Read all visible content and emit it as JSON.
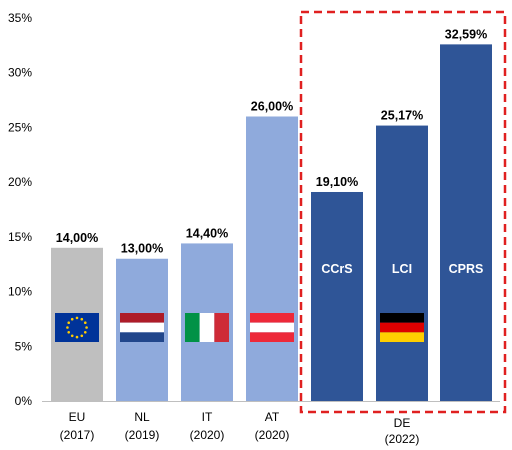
{
  "chart_data": {
    "type": "bar",
    "ylim": [
      0,
      35
    ],
    "y_ticks": [
      "0%",
      "5%",
      "10%",
      "15%",
      "20%",
      "25%",
      "30%",
      "35%"
    ],
    "grid": false,
    "categories": [
      {
        "key": "eu",
        "label": "EU",
        "year": "(2017)",
        "value": 14.0,
        "value_label": "14,00%",
        "color": "#bfbfbf",
        "flag": "eu"
      },
      {
        "key": "nl",
        "label": "NL",
        "year": "(2019)",
        "value": 13.0,
        "value_label": "13,00%",
        "color": "#8faadc",
        "flag": "nl"
      },
      {
        "key": "it",
        "label": "IT",
        "year": "(2020)",
        "value": 14.4,
        "value_label": "14,40%",
        "color": "#8faadc",
        "flag": "it"
      },
      {
        "key": "at",
        "label": "AT",
        "year": "(2020)",
        "value": 26.0,
        "value_label": "26,00%",
        "color": "#8faadc",
        "flag": "at"
      },
      {
        "key": "ccrs",
        "label": "",
        "year": "",
        "value": 19.1,
        "value_label": "19,10%",
        "color": "#2f5597",
        "inner_label": "CCrS"
      },
      {
        "key": "lci",
        "label": "",
        "year": "",
        "value": 25.17,
        "value_label": "25,17%",
        "color": "#2f5597",
        "inner_label": "LCI",
        "flag": "de"
      },
      {
        "key": "cprs",
        "label": "",
        "year": "",
        "value": 32.59,
        "value_label": "32,59%",
        "color": "#2f5597",
        "inner_label": "CPRS"
      }
    ],
    "group": {
      "label": "DE",
      "year": "(2022)",
      "border_color": "#e02020"
    }
  }
}
